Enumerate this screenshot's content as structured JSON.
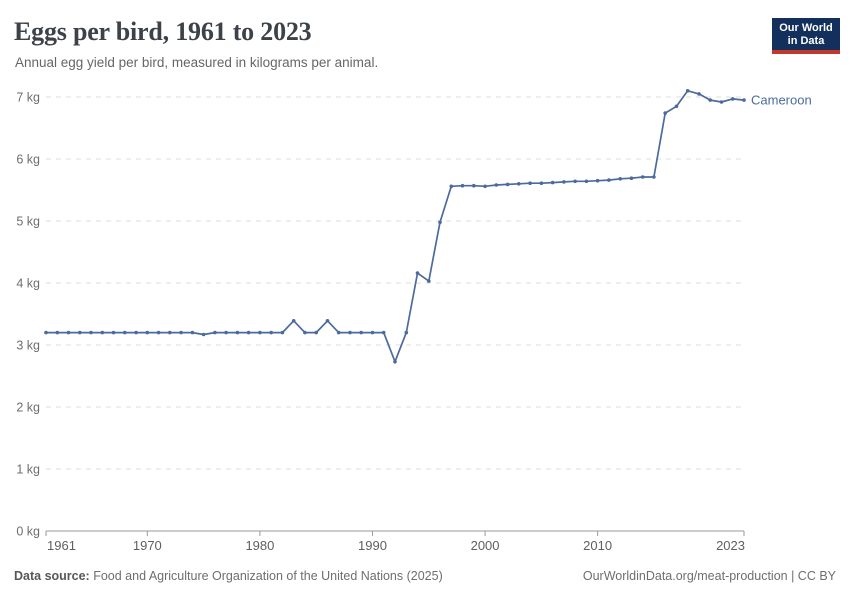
{
  "header": {
    "title": "Eggs per bird, 1961 to 2023",
    "subtitle": "Annual egg yield per bird, measured in kilograms per animal."
  },
  "logo": {
    "line1": "Our World",
    "line2": "in Data",
    "bg_color": "#12305B",
    "bar_color": "#C0392F"
  },
  "colors": {
    "line": "#4C6A9C",
    "grid": "#DCDCDC",
    "axis": "#9A9A9A",
    "tick_text": "#6E6E6E"
  },
  "chart_data": {
    "type": "line",
    "title": "Eggs per bird, 1961 to 2023",
    "subtitle": "Annual egg yield per bird, measured in kilograms per animal.",
    "xlabel": "",
    "ylabel": "",
    "xlim": [
      1961,
      2023
    ],
    "ylim": [
      0,
      7
    ],
    "grid": "horizontal-dashed",
    "legend_position": "end-of-line-label",
    "x_ticks": [
      1961,
      1970,
      1980,
      1990,
      2000,
      2010,
      2023
    ],
    "y_ticks": [
      {
        "value": 0,
        "label": "0 kg"
      },
      {
        "value": 1,
        "label": "1 kg"
      },
      {
        "value": 2,
        "label": "2 kg"
      },
      {
        "value": 3,
        "label": "3 kg"
      },
      {
        "value": 4,
        "label": "4 kg"
      },
      {
        "value": 5,
        "label": "5 kg"
      },
      {
        "value": 6,
        "label": "6 kg"
      },
      {
        "value": 7,
        "label": "7 kg"
      }
    ],
    "x": [
      1961,
      1962,
      1963,
      1964,
      1965,
      1966,
      1967,
      1968,
      1969,
      1970,
      1971,
      1972,
      1973,
      1974,
      1975,
      1976,
      1977,
      1978,
      1979,
      1980,
      1981,
      1982,
      1983,
      1984,
      1985,
      1986,
      1987,
      1988,
      1989,
      1990,
      1991,
      1992,
      1993,
      1994,
      1995,
      1996,
      1997,
      1998,
      1999,
      2000,
      2001,
      2002,
      2003,
      2004,
      2005,
      2006,
      2007,
      2008,
      2009,
      2010,
      2011,
      2012,
      2013,
      2014,
      2015,
      2016,
      2017,
      2018,
      2019,
      2020,
      2021,
      2022,
      2023
    ],
    "series": [
      {
        "name": "Cameroon",
        "color": "#4C6A9C",
        "values": [
          3.2,
          3.2,
          3.2,
          3.2,
          3.2,
          3.2,
          3.2,
          3.2,
          3.2,
          3.2,
          3.2,
          3.2,
          3.2,
          3.2,
          3.17,
          3.2,
          3.2,
          3.2,
          3.2,
          3.2,
          3.2,
          3.2,
          3.39,
          3.2,
          3.2,
          3.39,
          3.2,
          3.2,
          3.2,
          3.2,
          3.2,
          2.73,
          3.2,
          4.16,
          4.03,
          4.98,
          5.56,
          5.57,
          5.57,
          5.56,
          5.58,
          5.59,
          5.6,
          5.61,
          5.61,
          5.62,
          5.63,
          5.64,
          5.64,
          5.65,
          5.66,
          5.68,
          5.69,
          5.71,
          5.71,
          6.74,
          6.85,
          7.1,
          7.05,
          6.95,
          6.92,
          6.97,
          6.95
        ]
      }
    ]
  },
  "footer": {
    "source_label": "Data source:",
    "source_text": "Food and Agriculture Organization of the United Nations (2025)",
    "rights": "OurWorldinData.org/meat-production | CC BY"
  }
}
